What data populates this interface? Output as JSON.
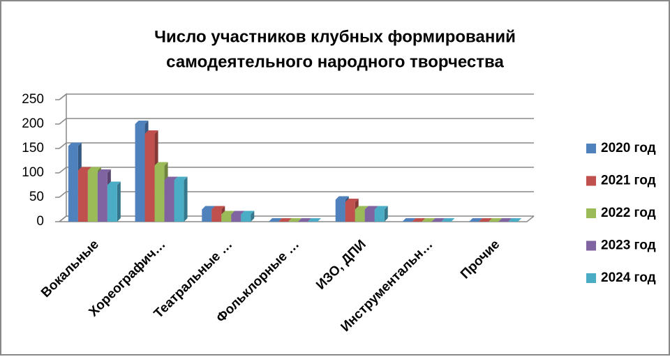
{
  "chart_data": {
    "type": "bar3d",
    "title": [
      "Число участников клубных формирований",
      "самодеятельного народного творчества"
    ],
    "categories": [
      "Вокальные",
      "Хореографич…",
      "Театральные …",
      "Фольклорные …",
      "ИЗО, ДПИ",
      "Инструментальн…",
      "Прочие"
    ],
    "series": [
      {
        "name": "2020 год",
        "color": "#4f81bd",
        "values": [
          155,
          200,
          25,
          0,
          45,
          0,
          0
        ]
      },
      {
        "name": "2021 год",
        "color": "#c0504d",
        "values": [
          105,
          180,
          25,
          0,
          40,
          0,
          0
        ]
      },
      {
        "name": "2022 год",
        "color": "#9bbb59",
        "values": [
          105,
          115,
          15,
          0,
          25,
          0,
          0
        ]
      },
      {
        "name": "2023 год",
        "color": "#8064a2",
        "values": [
          100,
          85,
          15,
          0,
          25,
          0,
          0
        ]
      },
      {
        "name": "2024 год",
        "color": "#4bacc6",
        "values": [
          75,
          85,
          15,
          0,
          25,
          0,
          0
        ]
      }
    ],
    "ylim": [
      0,
      250
    ],
    "yticks": [
      0,
      50,
      100,
      150,
      200,
      250
    ],
    "grid": true,
    "legend": "right"
  }
}
